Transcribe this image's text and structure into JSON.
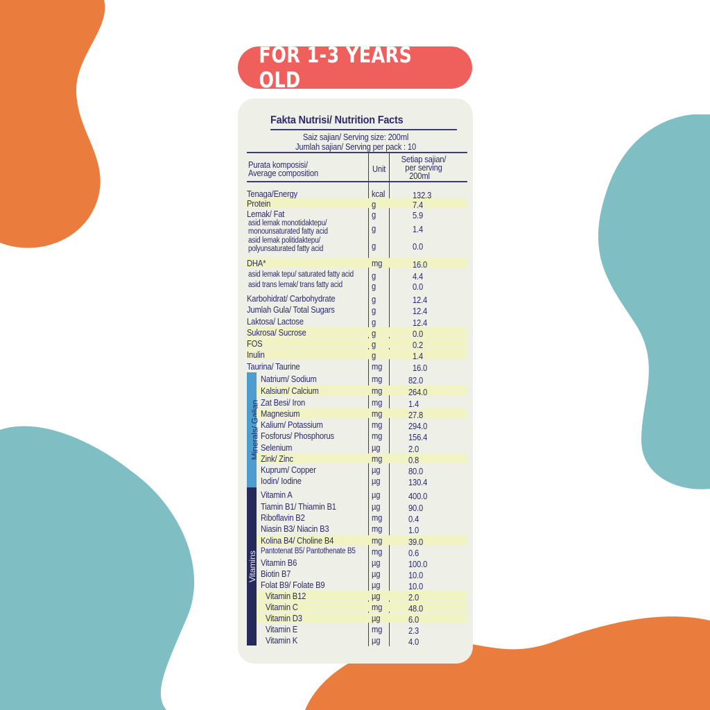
{
  "badge": {
    "text": "FOR 1-3 YEARS OLD",
    "color": "#ef5f5b"
  },
  "colors": {
    "orange": "#ea7d3e",
    "teal": "#7fbfc4",
    "ink": "#2b2a6b",
    "highlight": "#f1f3c2",
    "minerals": "#4d9dcf",
    "vitamins": "#262a5a"
  },
  "label": {
    "title": "Fakta Nutrisi/ Nutrition Facts",
    "serving_size": "Saiz sajian/ Serving size: 200ml",
    "servings_per_pack": "Jumlah sajian/ Serving per pack : 10",
    "header": {
      "composition_1": "Purata komposisi/",
      "composition_2": "Average composition",
      "unit": "Unit",
      "per_1": "Setiap sajian/",
      "per_2": "per serving",
      "per_3": "200ml"
    },
    "section_minerals": "Minerals/ Galian",
    "section_vitamins": "Vitamins",
    "rows": [
      {
        "name": "Tenaga/Energy",
        "unit": "kcal",
        "value": "132.3"
      },
      {
        "name": "Protein",
        "unit": "g",
        "value": "7.4",
        "highlight": true
      },
      {
        "name": "Lemak/ Fat",
        "unit": "g",
        "value": "5.9"
      },
      {
        "name": "asid lemak monotidaktepu/",
        "name2": "monounsaturated fatty acid",
        "unit": "g",
        "value": "1.4",
        "sub": true
      },
      {
        "name": "asid lemak politidaktepu/",
        "name2": "polyunsaturated fatty acid",
        "unit": "g",
        "value": "0.0",
        "sub": true
      },
      {
        "name": "DHA*",
        "unit": "mg",
        "value": "16.0",
        "highlight": true
      },
      {
        "name": "asid lemak tepu/ saturated fatty acid",
        "unit": "g",
        "value": "4.4",
        "sub": true
      },
      {
        "name": "asid trans lemak/ trans fatty acid",
        "unit": "g",
        "value": "0.0",
        "sub": true
      },
      {
        "name": "Karbohidrat/ Carbohydrate",
        "unit": "g",
        "value": "12.4"
      },
      {
        "name": "Jumlah Gula/ Total Sugars",
        "unit": "g",
        "value": "12.4"
      },
      {
        "name": "Laktosa/ Lactose",
        "unit": "g",
        "value": "12.4"
      },
      {
        "name": "Sukrosa/ Sucrose",
        "unit": "g",
        "value": "0.0",
        "highlight": true
      },
      {
        "name": "FOS",
        "unit": "g",
        "value": "0.2",
        "highlight": true
      },
      {
        "name": "Inulin",
        "unit": "g",
        "value": "1.4",
        "highlight": true
      },
      {
        "name": "Taurina/ Taurine",
        "unit": "mg",
        "value": "16.0"
      },
      {
        "name": "Natrium/ Sodium",
        "unit": "mg",
        "value": "82.0",
        "group": "m"
      },
      {
        "name": "Kalsium/ Calcium",
        "unit": "mg",
        "value": "264.0",
        "group": "m",
        "highlight": true
      },
      {
        "name": "Zat Besi/ Iron",
        "unit": "mg",
        "value": "1.4",
        "group": "m"
      },
      {
        "name": "Magnesium",
        "unit": "mg",
        "value": "27.8",
        "group": "m",
        "highlight": true
      },
      {
        "name": "Kalium/ Potassium",
        "unit": "mg",
        "value": "294.0",
        "group": "m"
      },
      {
        "name": "Fosforus/ Phosphorus",
        "unit": "mg",
        "value": "156.4",
        "group": "m"
      },
      {
        "name": "Selenium",
        "unit": "µg",
        "value": "2.0",
        "group": "m"
      },
      {
        "name": "Zink/ Zinc",
        "unit": "mg",
        "value": "0.8",
        "group": "m",
        "highlight": true
      },
      {
        "name": "Kuprum/ Copper",
        "unit": "µg",
        "value": "80.0",
        "group": "m"
      },
      {
        "name": "Iodin/ Iodine",
        "unit": "µg",
        "value": "130.4",
        "group": "m"
      },
      {
        "name": "Vitamin A",
        "unit": "µg",
        "value": "400.0",
        "group": "v"
      },
      {
        "name": "Tiamin B1/ Thiamin B1",
        "unit": "µg",
        "value": "90.0",
        "group": "v"
      },
      {
        "name": "Riboflavin B2",
        "unit": "mg",
        "value": "0.4",
        "group": "v"
      },
      {
        "name": "Niasin B3/ Niacin B3",
        "unit": "mg",
        "value": "1.0",
        "group": "v"
      },
      {
        "name": "Kolina B4/ Choline B4",
        "unit": "mg",
        "value": "39.0",
        "group": "v",
        "highlight": true
      },
      {
        "name": "Pantotenat B5/ Pantothenate B5",
        "unit": "mg",
        "value": "0.6",
        "group": "v",
        "sub": true
      },
      {
        "name": "Vitamin B6",
        "unit": "µg",
        "value": "100.0",
        "group": "v"
      },
      {
        "name": "Biotin B7",
        "unit": "µg",
        "value": "10.0",
        "group": "v"
      },
      {
        "name": "Folat B9/ Folate B9",
        "unit": "µg",
        "value": "10.0",
        "group": "v"
      },
      {
        "name": "Vitamin B12",
        "unit": "µg",
        "value": "2.0",
        "group": "v2",
        "highlight": true
      },
      {
        "name": "Vitamin C",
        "unit": "mg",
        "value": "48.0",
        "group": "v2",
        "highlight": true
      },
      {
        "name": "Vitamin D3",
        "unit": "µg",
        "value": "6.0",
        "group": "v2",
        "highlight": true
      },
      {
        "name": "Vitamin E",
        "unit": "mg",
        "value": "2.3",
        "group": "v2"
      },
      {
        "name": "Vitamin K",
        "unit": "µg",
        "value": "4.0",
        "group": "v2"
      }
    ]
  }
}
